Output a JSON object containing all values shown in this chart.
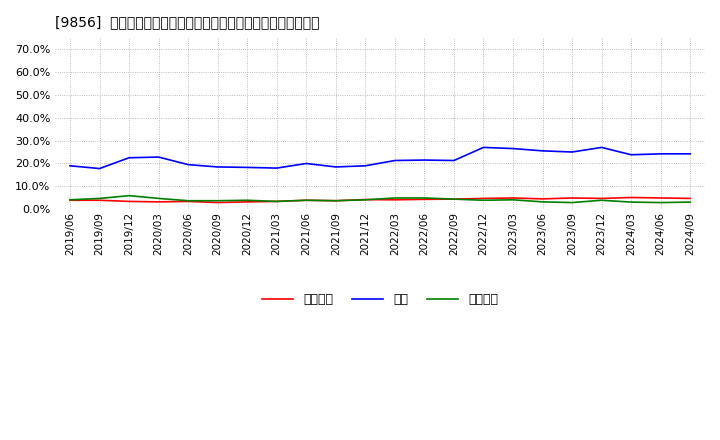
{
  "title": "[9856]  売上債権、在庫、買入債務の総資産に対する比率の推移",
  "dates": [
    "2019/06",
    "2019/09",
    "2019/12",
    "2020/03",
    "2020/06",
    "2020/09",
    "2020/12",
    "2021/03",
    "2021/06",
    "2021/09",
    "2021/12",
    "2022/03",
    "2022/06",
    "2022/09",
    "2022/12",
    "2023/03",
    "2023/06",
    "2023/09",
    "2023/12",
    "2024/03",
    "2024/06",
    "2024/09"
  ],
  "receivables": [
    0.04,
    0.04,
    0.035,
    0.033,
    0.035,
    0.03,
    0.033,
    0.035,
    0.04,
    0.038,
    0.043,
    0.042,
    0.044,
    0.045,
    0.048,
    0.05,
    0.046,
    0.05,
    0.048,
    0.052,
    0.05,
    0.048
  ],
  "inventory": [
    0.19,
    0.178,
    0.225,
    0.228,
    0.195,
    0.185,
    0.183,
    0.18,
    0.2,
    0.185,
    0.19,
    0.213,
    0.215,
    0.213,
    0.27,
    0.265,
    0.255,
    0.25,
    0.27,
    0.238,
    0.242,
    0.242
  ],
  "payables": [
    0.042,
    0.048,
    0.06,
    0.048,
    0.038,
    0.038,
    0.04,
    0.035,
    0.04,
    0.038,
    0.042,
    0.05,
    0.05,
    0.045,
    0.04,
    0.042,
    0.033,
    0.03,
    0.04,
    0.032,
    0.03,
    0.032
  ],
  "receivables_color": "#ff0000",
  "inventory_color": "#0000ff",
  "payables_color": "#008000",
  "ylim": [
    0.0,
    0.75
  ],
  "yticks": [
    0.0,
    0.1,
    0.2,
    0.3,
    0.4,
    0.5,
    0.6,
    0.7
  ],
  "legend_labels": [
    "売上債権",
    "在庫",
    "買入債務"
  ],
  "background_color": "#ffffff",
  "plot_bg_color": "#ffffff",
  "grid_color": "#aaaaaa",
  "line_width": 1.2
}
